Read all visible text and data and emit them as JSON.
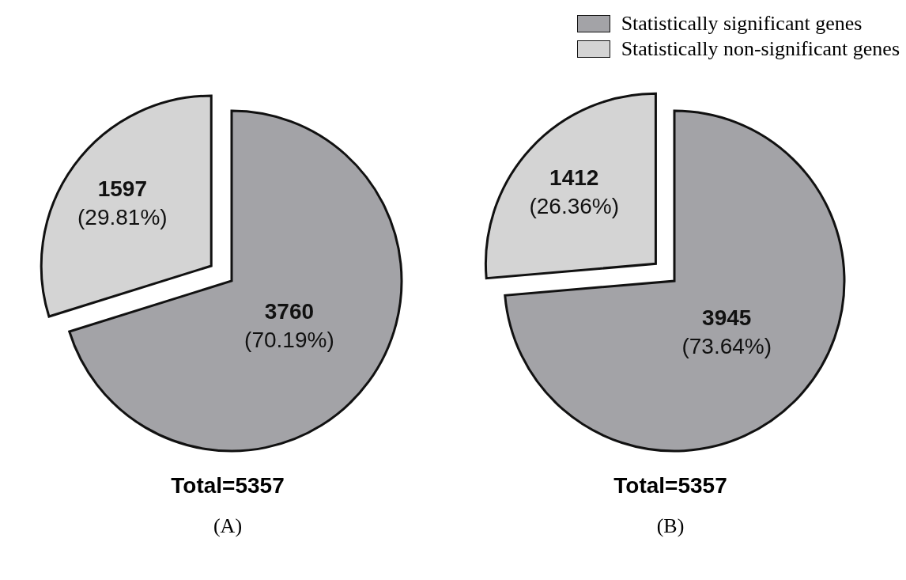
{
  "chart_data": [
    {
      "type": "pie",
      "title": "(A)",
      "categories": [
        null,
        null
      ],
      "values": [
        3760,
        1597
      ],
      "colors": [
        "#a3a3a7",
        "#d4d4d4"
      ],
      "value_labels": [
        "3760\n(70.19%)",
        "1597\n(29.81%)"
      ],
      "annotations": [
        "Total=5357"
      ]
    },
    {
      "type": "pie",
      "title": "(B)",
      "categories": [
        "Statistically significant genes",
        "Statistically non-significant genes"
      ],
      "values": [
        3945,
        1412
      ],
      "colors": [
        "#a3a3a7",
        "#d4d4d4"
      ],
      "value_labels": [
        "3945\n(73.64%)",
        "1412\n(26.36%)"
      ],
      "annotations": [
        "Total=5357"
      ],
      "legend": "top right"
    }
  ]
}
